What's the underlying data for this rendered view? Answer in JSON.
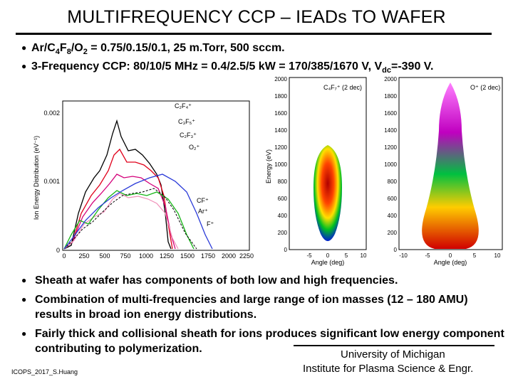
{
  "title": "MULTIFREQUENCY CCP – IEADs TO WAFER",
  "bullets_top": [
    {
      "pre": "Ar/C",
      "s1": "4",
      "mid1": "F",
      "s2": "8",
      "mid2": "/O",
      "s3": "2",
      "post": " = 0.75/0.15/0.1, 25 m.Torr, 500 sccm."
    },
    {
      "pre": "3-Frequency CCP: 80/10/5 MHz = 0.4/2.5/5 kW = 170/385/1670 V, V",
      "sub": "dc",
      "post": "=-390 V."
    }
  ],
  "iedf_chart": {
    "ylabel": "Ion Energy Distribution (eV⁻¹)",
    "yticks": [
      "0",
      "0.001",
      "0.002"
    ],
    "xticks": [
      "0",
      "250",
      "500",
      "750",
      "1000",
      "1250",
      "1500",
      "1750",
      "2000",
      "2250"
    ],
    "xlabel": "Energy (eV)",
    "labels": {
      "C2F4": "C₂F₄⁺",
      "C3F5": "C₃F₅⁺",
      "C2F3": "C₂F₃⁺",
      "O2": "O₂⁺",
      "CF": "CF⁺",
      "Ar": "Ar⁺",
      "F": "F⁺"
    }
  },
  "iead_left": {
    "ylabel": "Energy (eV)",
    "yticks": [
      "0",
      "200",
      "400",
      "600",
      "800",
      "1000",
      "1200",
      "1400",
      "1600",
      "1800",
      "2000"
    ],
    "xticks": [
      "-5",
      "0",
      "5",
      "10"
    ],
    "xlabel": "Angle (deg)",
    "tag": "C₄F₇⁺ (2 dec)"
  },
  "iead_right": {
    "yticks": [
      "0",
      "200",
      "400",
      "600",
      "800",
      "1000",
      "1200",
      "1400",
      "1600",
      "1800",
      "2000"
    ],
    "xticks": [
      "-10",
      "-5",
      "0",
      "5",
      "10"
    ],
    "xlabel": "Angle (deg)",
    "tag": "O⁺ (2 dec)"
  },
  "bullets_bottom": [
    "Sheath at wafer has components of both low and high frequencies.",
    "Combination of multi-frequencies and large range of ion masses (12 –  180 AMU) results in broad ion energy distributions.",
    "Fairly thick and collisional sheath for ions produces significant low energy component contributing to polymerization."
  ],
  "affiliation": {
    "line1": "University of Michigan",
    "line2": "Institute for Plasma Science & Engr."
  },
  "credit": "ICOPS_2017_S.Huang",
  "colors": {
    "black": "#000000",
    "red": "#e0001a",
    "magenta": "#d4007a",
    "pink": "#f08fb8",
    "green": "#15b515",
    "blue": "#2a3ad8"
  }
}
